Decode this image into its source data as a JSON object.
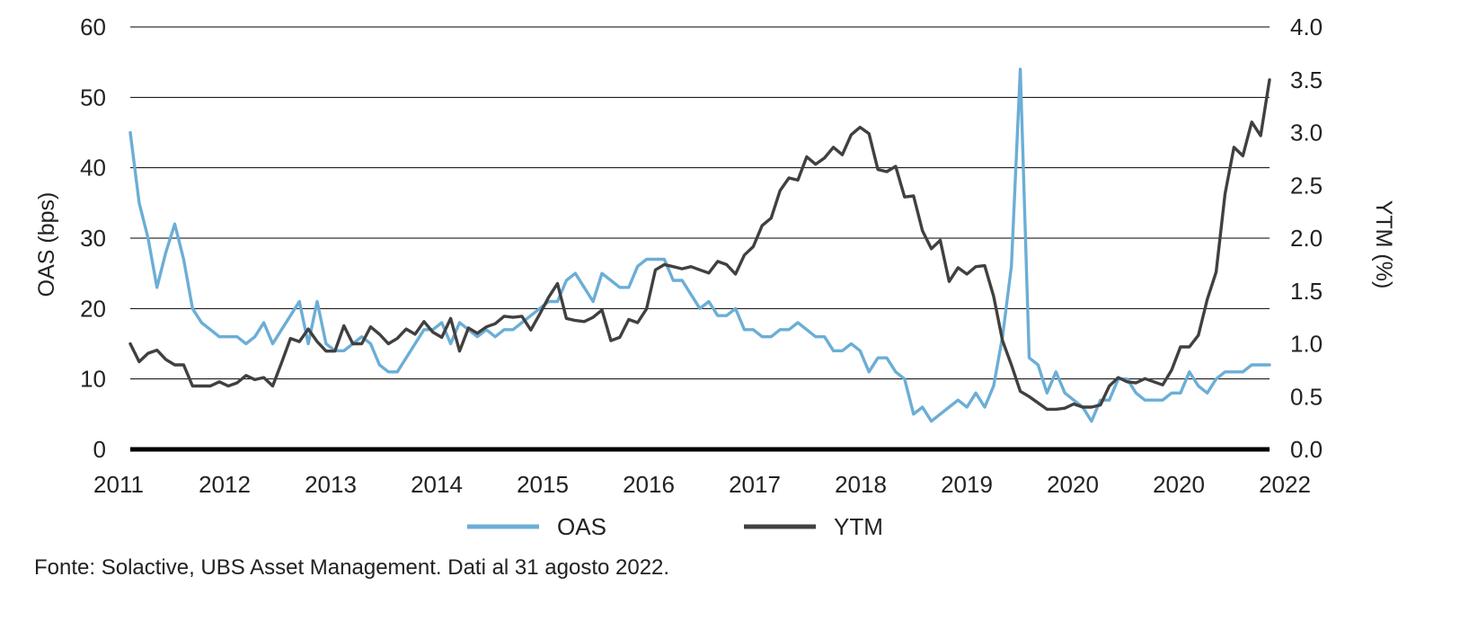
{
  "chart_data": {
    "type": "line",
    "x_labels": [
      "2011",
      "2012",
      "2013",
      "2014",
      "2015",
      "2016",
      "2017",
      "2018",
      "2019",
      "2020",
      "2020",
      "2022"
    ],
    "left_axis": {
      "label": "OAS (bps)",
      "ylim": [
        0,
        60
      ],
      "ticks": [
        "0",
        "10",
        "20",
        "30",
        "40",
        "50",
        "60"
      ]
    },
    "right_axis": {
      "label": "YTM (%)",
      "ylim": [
        0,
        4.0
      ],
      "ticks": [
        "0.0",
        "0.5",
        "1.0",
        "1.5",
        "2.0",
        "2.5",
        "3.0",
        "3.5",
        "4.0"
      ]
    },
    "grid": true,
    "legend_position": "bottom",
    "series": [
      {
        "name": "OAS",
        "axis": "left",
        "color": "#6baed6",
        "values": [
          45,
          35,
          30,
          23,
          28,
          32,
          27,
          20,
          18,
          17,
          16,
          16,
          16,
          15,
          16,
          18,
          15,
          17,
          19,
          21,
          15,
          21,
          15,
          14,
          14,
          15,
          16,
          15,
          12,
          11,
          11,
          13,
          15,
          17,
          17,
          18,
          15,
          18,
          17,
          16,
          17,
          16,
          17,
          17,
          18,
          19,
          20,
          21,
          21,
          24,
          25,
          23,
          21,
          25,
          24,
          23,
          23,
          26,
          27,
          27,
          27,
          24,
          24,
          22,
          20,
          21,
          19,
          19,
          20,
          17,
          17,
          16,
          16,
          17,
          17,
          18,
          17,
          16,
          16,
          14,
          14,
          15,
          14,
          11,
          13,
          13,
          11,
          10,
          5,
          6,
          4,
          5,
          6,
          7,
          6,
          8,
          6,
          9,
          16,
          26,
          54,
          13,
          12,
          8,
          11,
          8,
          7,
          6,
          4,
          7,
          7,
          10,
          10,
          8,
          7,
          7,
          7,
          8,
          8,
          11,
          9,
          8,
          10,
          11,
          11,
          11,
          12,
          12,
          12
        ]
      },
      {
        "name": "YTM",
        "axis": "right",
        "color": "#404040",
        "values": [
          1.0,
          0.83,
          0.91,
          0.94,
          0.85,
          0.8,
          0.8,
          0.6,
          0.6,
          0.6,
          0.64,
          0.6,
          0.63,
          0.7,
          0.66,
          0.68,
          0.6,
          0.82,
          1.05,
          1.02,
          1.14,
          1.02,
          0.93,
          0.93,
          1.17,
          1.0,
          1.0,
          1.16,
          1.09,
          1.0,
          1.05,
          1.14,
          1.09,
          1.21,
          1.11,
          1.06,
          1.24,
          0.93,
          1.15,
          1.1,
          1.16,
          1.19,
          1.26,
          1.25,
          1.26,
          1.13,
          1.28,
          1.44,
          1.57,
          1.24,
          1.22,
          1.21,
          1.25,
          1.32,
          1.03,
          1.06,
          1.23,
          1.2,
          1.33,
          1.7,
          1.75,
          1.73,
          1.71,
          1.73,
          1.7,
          1.67,
          1.78,
          1.75,
          1.66,
          1.84,
          1.92,
          2.12,
          2.19,
          2.45,
          2.57,
          2.55,
          2.77,
          2.7,
          2.76,
          2.86,
          2.79,
          2.98,
          3.05,
          2.99,
          2.65,
          2.63,
          2.68,
          2.39,
          2.4,
          2.07,
          1.9,
          1.98,
          1.59,
          1.72,
          1.66,
          1.73,
          1.74,
          1.45,
          1.03,
          0.8,
          0.55,
          0.5,
          0.44,
          0.38,
          0.38,
          0.39,
          0.43,
          0.4,
          0.4,
          0.42,
          0.6,
          0.68,
          0.64,
          0.63,
          0.67,
          0.64,
          0.61,
          0.75,
          0.97,
          0.97,
          1.08,
          1.42,
          1.68,
          2.42,
          2.86,
          2.78,
          3.1,
          2.97,
          3.5
        ]
      }
    ]
  },
  "source_note": "Fonte: Solactive, UBS Asset Management. Dati al 31 agosto 2022."
}
